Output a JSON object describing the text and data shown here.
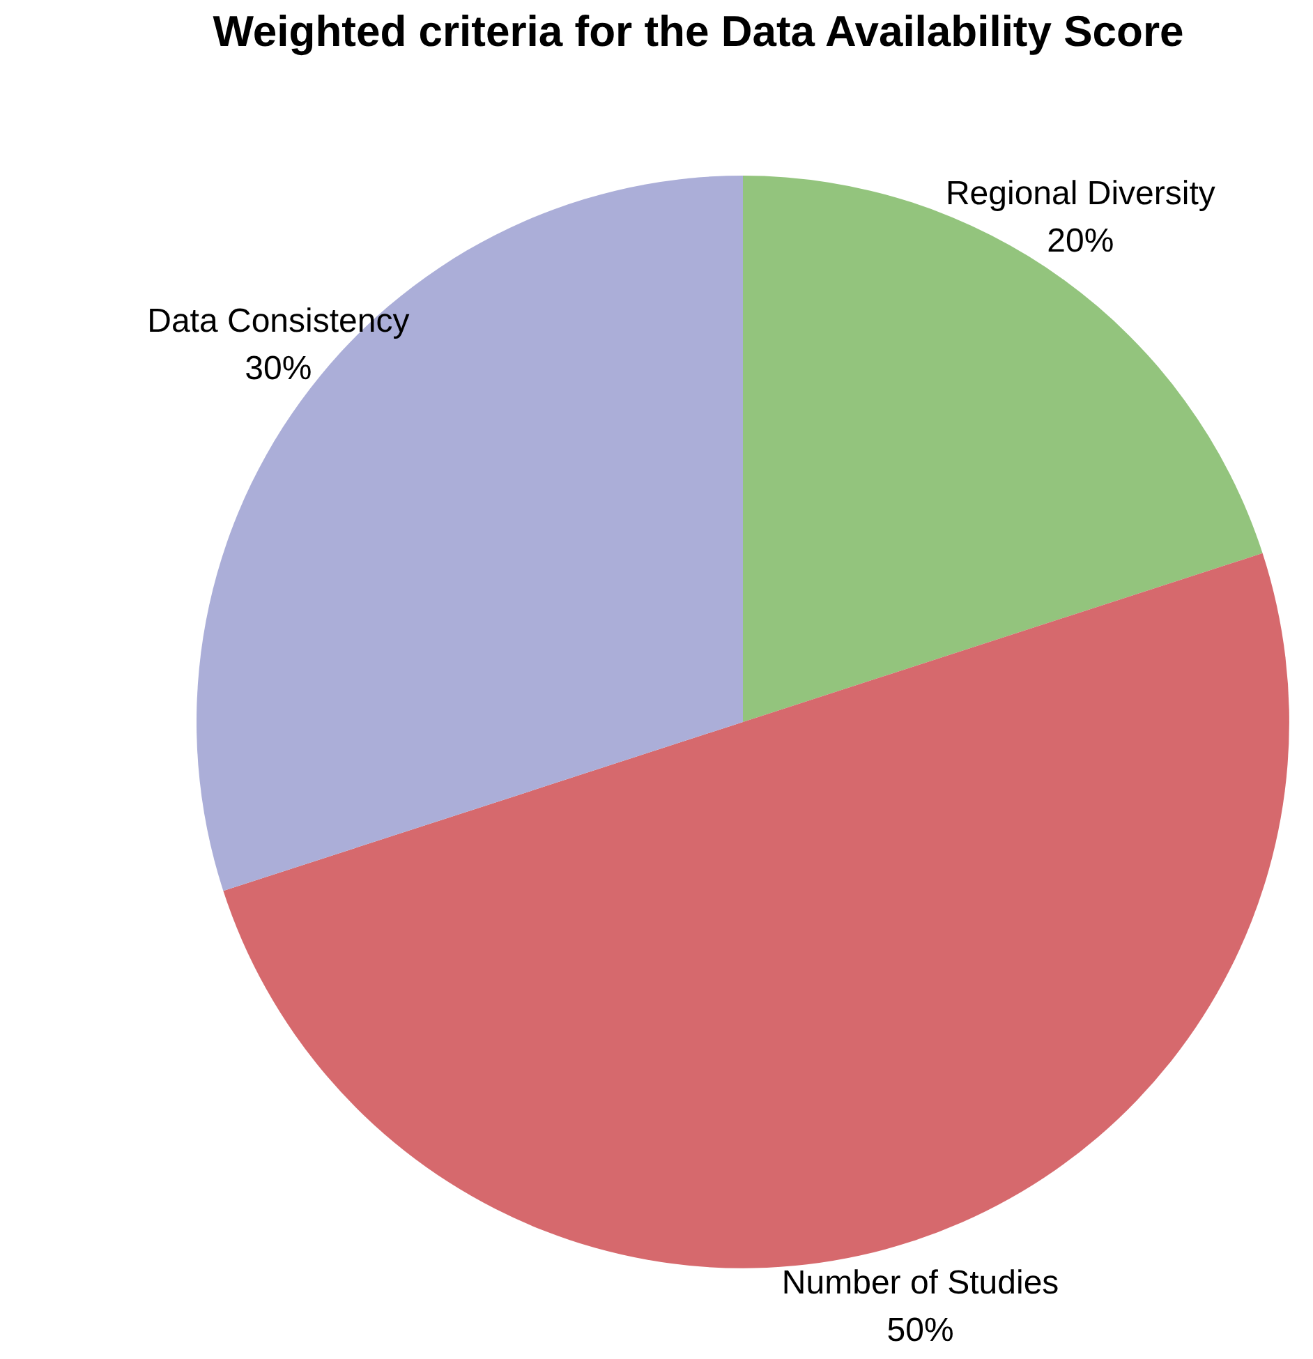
{
  "chart_data": {
    "type": "pie",
    "title": "Weighted criteria for the Data Availability Score",
    "categories": [
      "Regional Diversity",
      "Number of Studies",
      "Data Consistency"
    ],
    "values": [
      20,
      50,
      30
    ],
    "colors": [
      "#93c47d",
      "#d6696d",
      "#abaed8"
    ],
    "value_labels": [
      "20%",
      "50%",
      "30%"
    ],
    "legend": false
  }
}
